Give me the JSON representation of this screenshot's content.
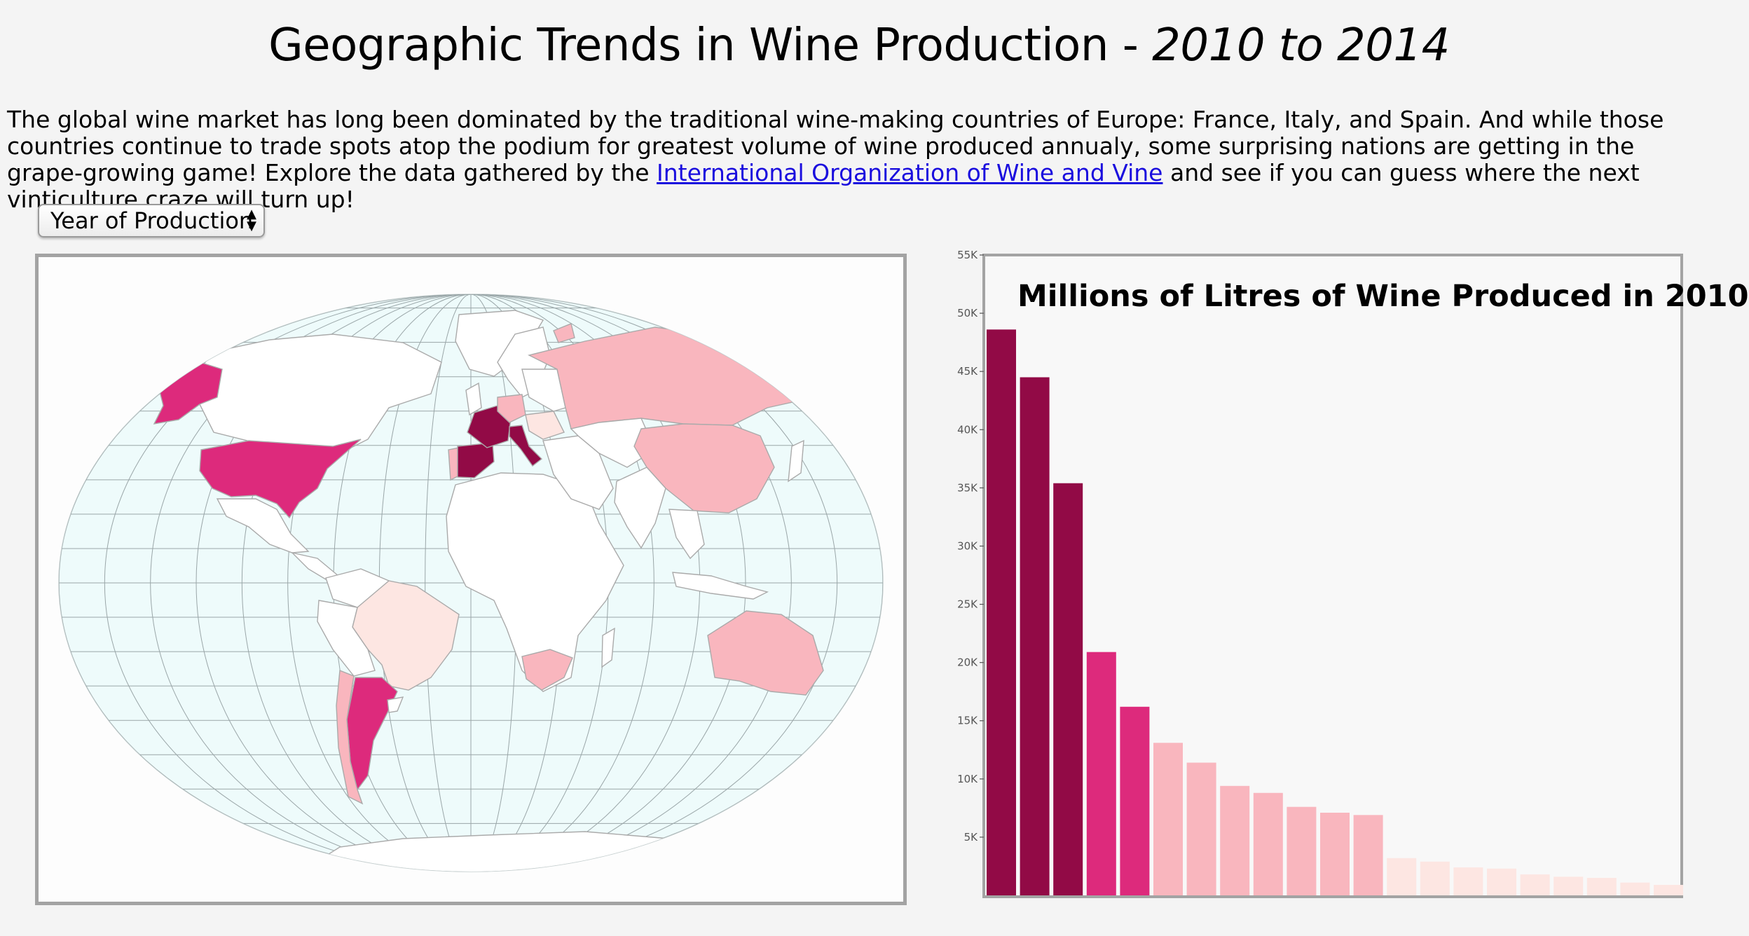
{
  "page": {
    "title_main": "Geographic Trends in Wine Production - ",
    "title_years": "2010 to 2014",
    "intro_before": "The global wine market has long been dominated by the traditional wine-making countries of Europe: France, Italy, and Spain. And while those countries continue to trade spots atop the podium for greatest volume of wine produced annualy, some surprising nations are getting in the grape-growing game! Explore the data gathered by the ",
    "intro_link": "International Organization of Wine and Vine",
    "intro_after": " and see if you can guess where the next vinticulture craze will turn up!"
  },
  "controls": {
    "year_select_label": "Year of Production",
    "year_select_icon": "up-down-arrows-icon"
  },
  "map": {
    "projection": "oval world map with graticule",
    "ocean_color": "#eefbfb",
    "land_default_color": "#ffffff",
    "color_scale": [
      "#fde6e2",
      "#f9b6be",
      "#dd2a7c",
      "#920a46"
    ],
    "highlighted": [
      {
        "country": "France",
        "color": "#920a46"
      },
      {
        "country": "Italy",
        "color": "#920a46"
      },
      {
        "country": "Spain",
        "color": "#920a46"
      },
      {
        "country": "United States",
        "color": "#dd2a7c"
      },
      {
        "country": "Argentina",
        "color": "#dd2a7c"
      },
      {
        "country": "Russia",
        "color": "#f9b6be"
      },
      {
        "country": "China",
        "color": "#f9b6be"
      },
      {
        "country": "Australia",
        "color": "#f9b6be"
      },
      {
        "country": "South Africa",
        "color": "#f9b6be"
      },
      {
        "country": "Chile",
        "color": "#f9b6be"
      },
      {
        "country": "Germany",
        "color": "#f9b6be"
      },
      {
        "country": "Portugal",
        "color": "#f9b6be"
      },
      {
        "country": "Brazil",
        "color": "#fde6e2"
      },
      {
        "country": "Romania",
        "color": "#fde6e2"
      },
      {
        "country": "Hungary",
        "color": "#fde6e2"
      }
    ]
  },
  "chart_data": {
    "type": "bar",
    "title": "Millions of Litres of Wine Produced in 2010",
    "yticks": [
      5000,
      10000,
      15000,
      20000,
      25000,
      30000,
      35000,
      40000,
      45000,
      50000,
      55000
    ],
    "ytick_labels": [
      "5K",
      "10K",
      "15K",
      "20K",
      "25K",
      "30K",
      "35K",
      "40K",
      "45K",
      "50K",
      "55K"
    ],
    "ylim": [
      0,
      55000
    ],
    "values": [
      48600,
      44500,
      35400,
      20900,
      16200,
      13100,
      11400,
      9400,
      8800,
      7600,
      7100,
      6900,
      3200,
      2900,
      2400,
      2300,
      1800,
      1600,
      1500,
      1100,
      900
    ],
    "colors": [
      "#920a46",
      "#920a46",
      "#920a46",
      "#dd2a7c",
      "#dd2a7c",
      "#f9b6be",
      "#f9b6be",
      "#f9b6be",
      "#f9b6be",
      "#f9b6be",
      "#f9b6be",
      "#f9b6be",
      "#fde6e2",
      "#fde6e2",
      "#fde6e2",
      "#fde6e2",
      "#fde6e2",
      "#fde6e2",
      "#fde6e2",
      "#fde6e2",
      "#fde6e2"
    ]
  }
}
